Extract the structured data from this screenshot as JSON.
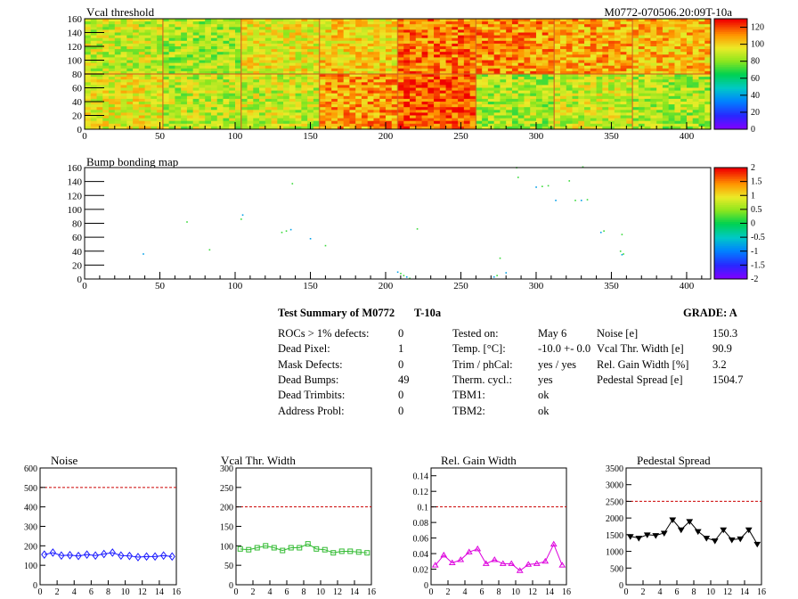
{
  "top_panel": {
    "title": "Vcal threshold",
    "id_label": "M0772-070506.20:09T-10a"
  },
  "bump_panel": {
    "title": "Bump bonding map"
  },
  "summary": {
    "heading": "Test Summary of M0772",
    "tag": "T-10a",
    "grade": "GRADE:  A",
    "col1": [
      {
        "label": "ROCs > 1% defects:",
        "value": "0"
      },
      {
        "label": "Dead Pixel:",
        "value": "1"
      },
      {
        "label": "Mask Defects:",
        "value": "0"
      },
      {
        "label": "Dead Bumps:",
        "value": "49"
      },
      {
        "label": "Dead Trimbits:",
        "value": "0"
      },
      {
        "label": "Address Probl:",
        "value": "0"
      }
    ],
    "col2": [
      {
        "label": "Tested on:",
        "value": "May 6"
      },
      {
        "label": "Temp. [°C]:",
        "value": "-10.0 +- 0.0"
      },
      {
        "label": "Trim / phCal:",
        "value": "yes / yes"
      },
      {
        "label": "Therm. cycl.:",
        "value": "yes"
      },
      {
        "label": "TBM1:",
        "value": "ok"
      },
      {
        "label": "TBM2:",
        "value": "ok"
      }
    ],
    "col3": [
      {
        "label": "Noise [e]",
        "value": "150.3"
      },
      {
        "label": "Vcal Thr. Width [e]",
        "value": "90.9"
      },
      {
        "label": "Rel. Gain Width [%]",
        "value": "3.2"
      },
      {
        "label": "Pedestal Spread [e]",
        "value": "1504.7"
      }
    ]
  },
  "chart_data": [
    {
      "type": "heatmap",
      "title": "Vcal threshold",
      "xlim": [
        0,
        416
      ],
      "ylim": [
        0,
        160
      ],
      "xticks": [
        0,
        50,
        100,
        150,
        200,
        250,
        300,
        350,
        400
      ],
      "yticks": [
        0,
        20,
        40,
        60,
        80,
        100,
        120,
        140,
        160
      ],
      "zlim": [
        0,
        130
      ],
      "zticks": [
        0,
        20,
        40,
        60,
        80,
        100,
        120
      ],
      "roc_levels": [
        [
          95,
          88,
          90,
          110,
          120,
          85,
          90,
          85
        ],
        [
          90,
          85,
          95,
          100,
          115,
          112,
          108,
          105
        ]
      ]
    },
    {
      "type": "scatter",
      "title": "Bump bonding map",
      "xlim": [
        0,
        416
      ],
      "ylim": [
        0,
        160
      ],
      "xticks": [
        0,
        50,
        100,
        150,
        200,
        250,
        300,
        350,
        400
      ],
      "yticks": [
        0,
        20,
        40,
        60,
        80,
        100,
        120,
        140,
        160
      ],
      "zlim": [
        -2,
        2
      ],
      "zticks": [
        -2,
        -1.5,
        -1,
        -0.5,
        0,
        0.5,
        1,
        1.5,
        2
      ],
      "points": [
        [
          39,
          36
        ],
        [
          68,
          82
        ],
        [
          104,
          86
        ],
        [
          105,
          92
        ],
        [
          131,
          67
        ],
        [
          134,
          69
        ],
        [
          137,
          71
        ],
        [
          138,
          137
        ],
        [
          160,
          48
        ],
        [
          208,
          10
        ],
        [
          210,
          8
        ],
        [
          212,
          5
        ],
        [
          214,
          3
        ],
        [
          216,
          1
        ],
        [
          221,
          72
        ],
        [
          272,
          3
        ],
        [
          274,
          5
        ],
        [
          276,
          30
        ],
        [
          280,
          9
        ],
        [
          287,
          160
        ],
        [
          288,
          146
        ],
        [
          300,
          132
        ],
        [
          304,
          133
        ],
        [
          308,
          134
        ],
        [
          313,
          113
        ],
        [
          322,
          141
        ],
        [
          326,
          113
        ],
        [
          330,
          113
        ],
        [
          331,
          161
        ],
        [
          334,
          114
        ],
        [
          343,
          67
        ],
        [
          345,
          69
        ],
        [
          356,
          40
        ],
        [
          357,
          35
        ],
        [
          358,
          36
        ],
        [
          357,
          64
        ],
        [
          150,
          58
        ],
        [
          83,
          42
        ]
      ]
    },
    {
      "type": "line",
      "title": "Noise",
      "x": [
        0,
        1,
        2,
        3,
        4,
        5,
        6,
        7,
        8,
        9,
        10,
        11,
        12,
        13,
        14,
        15
      ],
      "values": [
        155,
        165,
        150,
        152,
        148,
        155,
        150,
        158,
        165,
        150,
        148,
        142,
        145,
        145,
        150,
        145
      ],
      "ylim": [
        0,
        600
      ],
      "yticks": [
        0,
        100,
        200,
        300,
        400,
        500,
        600
      ],
      "xlim": [
        0,
        16
      ],
      "xticks": [
        0,
        2,
        4,
        6,
        8,
        10,
        12,
        14,
        16
      ],
      "threshold": 500,
      "color": "#1a1aff",
      "marker": "diamond"
    },
    {
      "type": "line",
      "title": "Vcal Thr. Width",
      "x": [
        0,
        1,
        2,
        3,
        4,
        5,
        6,
        7,
        8,
        9,
        10,
        11,
        12,
        13,
        14,
        15
      ],
      "values": [
        92,
        90,
        95,
        100,
        95,
        88,
        95,
        95,
        105,
        92,
        90,
        82,
        86,
        86,
        84,
        82
      ],
      "ylim": [
        0,
        300
      ],
      "yticks": [
        0,
        50,
        100,
        150,
        200,
        250,
        300
      ],
      "xlim": [
        0,
        16
      ],
      "xticks": [
        0,
        2,
        4,
        6,
        8,
        10,
        12,
        14,
        16
      ],
      "threshold": 200,
      "color": "#33bb33",
      "marker": "square"
    },
    {
      "type": "line",
      "title": "Rel. Gain Width",
      "x": [
        0,
        1,
        2,
        3,
        4,
        5,
        6,
        7,
        8,
        9,
        10,
        11,
        12,
        13,
        14,
        15
      ],
      "values": [
        0.025,
        0.038,
        0.028,
        0.032,
        0.042,
        0.046,
        0.027,
        0.032,
        0.027,
        0.027,
        0.018,
        0.026,
        0.027,
        0.03,
        0.052,
        0.025
      ],
      "ylim": [
        0,
        0.15
      ],
      "yticks": [
        0,
        0.02,
        0.04,
        0.06,
        0.08,
        0.1,
        0.12,
        0.14
      ],
      "ytick_labels": [
        "0",
        "0.02",
        "0.04",
        "0.06",
        "0.08",
        "0.1",
        "0.12",
        "0.14"
      ],
      "xlim": [
        0,
        16
      ],
      "xticks": [
        0,
        2,
        4,
        6,
        8,
        10,
        12,
        14,
        16
      ],
      "threshold": 0.1,
      "color": "#dd00dd",
      "marker": "triangle"
    },
    {
      "type": "line",
      "title": "Pedestal Spread",
      "x": [
        0,
        1,
        2,
        3,
        4,
        5,
        6,
        7,
        8,
        9,
        10,
        11,
        12,
        13,
        14,
        15
      ],
      "values": [
        1450,
        1400,
        1500,
        1480,
        1550,
        1950,
        1650,
        1900,
        1600,
        1400,
        1320,
        1650,
        1350,
        1380,
        1650,
        1220
      ],
      "ylim": [
        0,
        3500
      ],
      "yticks": [
        0,
        500,
        1000,
        1500,
        2000,
        2500,
        3000,
        3500
      ],
      "xlim": [
        0,
        16
      ],
      "xticks": [
        0,
        2,
        4,
        6,
        8,
        10,
        12,
        14,
        16
      ],
      "threshold": 2500,
      "color": "#000000",
      "marker": "triangle-down"
    }
  ]
}
